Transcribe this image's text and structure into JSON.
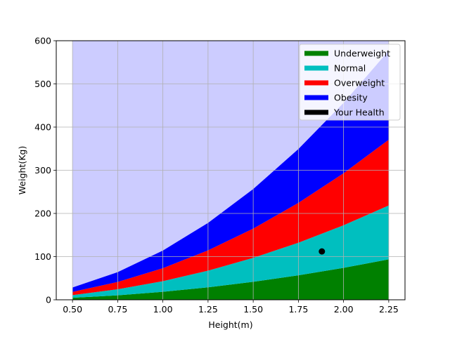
{
  "chart_data": {
    "type": "area",
    "stacked": true,
    "xlabel": "Height(m)",
    "ylabel": "Weight(Kg)",
    "xlim": [
      0.41,
      2.34
    ],
    "ylim": [
      0,
      600
    ],
    "grid": true,
    "x": [
      0.5,
      0.75,
      1.0,
      1.25,
      1.5,
      1.75,
      2.0,
      2.25
    ],
    "x_tick_labels": [
      "0.50",
      "0.75",
      "1.00",
      "1.25",
      "1.50",
      "1.75",
      "2.00",
      "2.25"
    ],
    "y_ticks": [
      0,
      100,
      200,
      300,
      400,
      500,
      600
    ],
    "y_tick_labels": [
      "0",
      "100",
      "200",
      "300",
      "400",
      "500",
      "600"
    ],
    "series": [
      {
        "name": "Underweight",
        "color": "#008000",
        "upper": [
          4.6,
          10.4,
          18.5,
          28.9,
          41.6,
          56.7,
          74.0,
          93.7
        ]
      },
      {
        "name": "Normal",
        "color": "#00bfbf",
        "upper": [
          10.8,
          24.3,
          43.1,
          67.4,
          97.1,
          132.1,
          172.6,
          218.4
        ]
      },
      {
        "name": "Overweight",
        "color": "#ff0000",
        "upper": [
          18.3,
          41.2,
          73.2,
          114.4,
          164.8,
          224.3,
          293.0,
          370.8
        ]
      },
      {
        "name": "Obesity",
        "color": "#0000ff",
        "upper": [
          28.5,
          64.1,
          114.0,
          178.1,
          256.5,
          349.1,
          456.0,
          577.1
        ]
      }
    ],
    "top_fill_color": "#ccccff",
    "point": {
      "name": "Your Health",
      "x": 1.88,
      "y": 112,
      "color": "#000000"
    },
    "legend_position": "top-right"
  }
}
